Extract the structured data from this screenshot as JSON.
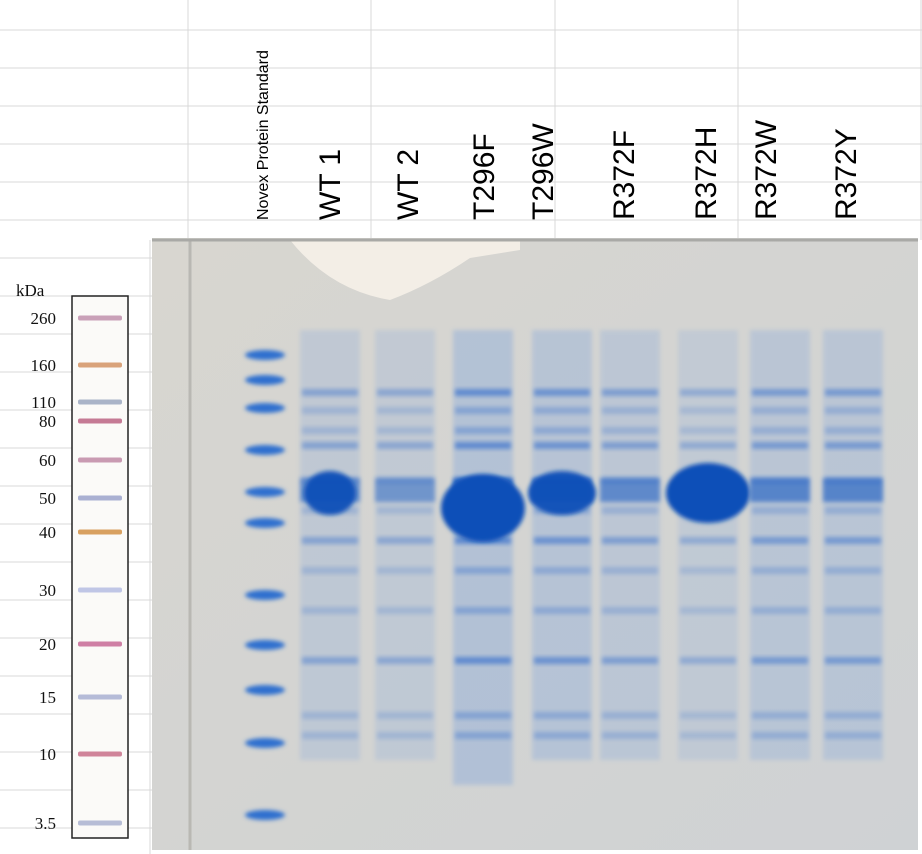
{
  "lanes": [
    "Novex Protein Standard",
    "WT 1",
    "WT 2",
    "T296F",
    "T296W",
    "R372F",
    "R372H",
    "R372W",
    "R372Y"
  ],
  "ladder": {
    "unit": "kDa",
    "labels": [
      "260",
      "160",
      "110",
      "80",
      "60",
      "50",
      "40",
      "30",
      "20",
      "15",
      "10",
      "3.5"
    ]
  }
}
